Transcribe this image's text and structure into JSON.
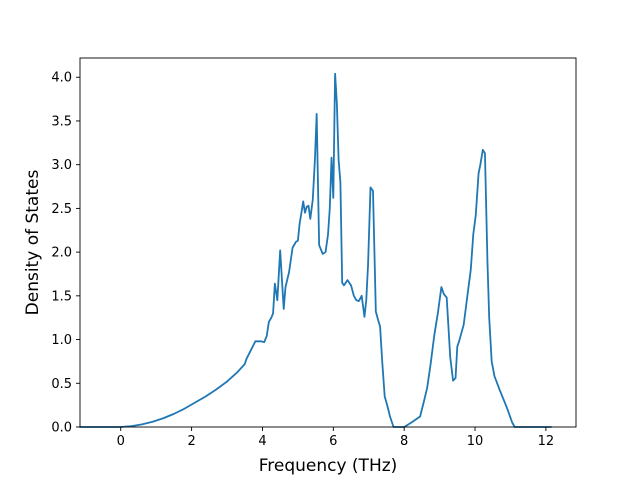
{
  "chart_data": {
    "type": "line",
    "title": "",
    "xlabel": "Frequency (THz)",
    "ylabel": "Density of States",
    "xlim": [
      -1.15,
      12.85
    ],
    "ylim": [
      0,
      4.22
    ],
    "xticks": [
      0,
      2,
      4,
      6,
      8,
      10,
      12
    ],
    "xtick_labels": [
      "0",
      "2",
      "4",
      "6",
      "8",
      "10",
      "12"
    ],
    "yticks": [
      0,
      0.5,
      1.0,
      1.5,
      2.0,
      2.5,
      3.0,
      3.5,
      4.0
    ],
    "ytick_labels": [
      "0.0",
      "0.5",
      "1.0",
      "1.5",
      "2.0",
      "2.5",
      "3.0",
      "3.5",
      "4.0"
    ],
    "grid": false,
    "legend": "none",
    "line_color": "#1f77b4",
    "series": [
      {
        "x": [
          -1.15,
          -0.5,
          0.0,
          0.3,
          0.6,
          0.9,
          1.2,
          1.5,
          1.8,
          2.1,
          2.4,
          2.7,
          3.0,
          3.3,
          3.5,
          3.55,
          3.65,
          3.8,
          3.95,
          4.05,
          4.12,
          4.18,
          4.25,
          4.3,
          4.35,
          4.42,
          4.5,
          4.6,
          4.65,
          4.75,
          4.85,
          4.95,
          5.0,
          5.05,
          5.1,
          5.15,
          5.2,
          5.25,
          5.3,
          5.35,
          5.42,
          5.48,
          5.53,
          5.6,
          5.7,
          5.78,
          5.85,
          5.9,
          5.95,
          6.0,
          6.05,
          6.1,
          6.15,
          6.2,
          6.25,
          6.3,
          6.4,
          6.5,
          6.58,
          6.65,
          6.72,
          6.8,
          6.88,
          6.93,
          6.98,
          7.05,
          7.12,
          7.2,
          7.28,
          7.32,
          7.38,
          7.45,
          7.52,
          7.6,
          7.7,
          7.78,
          7.83,
          7.9,
          8.0,
          8.2,
          8.45,
          8.55,
          8.65,
          8.75,
          8.85,
          8.95,
          9.05,
          9.12,
          9.2,
          9.3,
          9.38,
          9.45,
          9.5,
          9.55,
          9.68,
          9.8,
          9.88,
          9.95,
          10.02,
          10.1,
          10.15,
          10.22,
          10.28,
          10.35,
          10.4,
          10.47,
          10.55,
          10.7,
          10.9,
          11.05,
          11.12,
          11.2,
          11.5,
          12.15
        ],
        "y": [
          0,
          0,
          0,
          0.01,
          0.03,
          0.06,
          0.1,
          0.15,
          0.21,
          0.28,
          0.35,
          0.43,
          0.52,
          0.63,
          0.72,
          0.78,
          0.86,
          0.98,
          0.98,
          0.97,
          1.04,
          1.2,
          1.25,
          1.3,
          1.64,
          1.45,
          2.02,
          1.35,
          1.6,
          1.77,
          2.05,
          2.12,
          2.13,
          2.33,
          2.45,
          2.58,
          2.45,
          2.52,
          2.53,
          2.38,
          2.6,
          3.05,
          3.58,
          2.08,
          1.98,
          2.0,
          2.2,
          2.5,
          3.08,
          2.62,
          4.04,
          3.7,
          3.05,
          2.8,
          1.65,
          1.62,
          1.68,
          1.62,
          1.5,
          1.45,
          1.44,
          1.5,
          1.26,
          1.45,
          1.85,
          2.74,
          2.7,
          1.32,
          1.2,
          1.15,
          0.75,
          0.35,
          0.25,
          0.12,
          0,
          0,
          0,
          0,
          0,
          0.05,
          0.12,
          0.28,
          0.45,
          0.73,
          1.05,
          1.3,
          1.6,
          1.52,
          1.48,
          0.8,
          0.53,
          0.56,
          0.92,
          0.98,
          1.17,
          1.55,
          1.8,
          2.2,
          2.42,
          2.9,
          3.0,
          3.17,
          3.13,
          1.9,
          1.25,
          0.75,
          0.58,
          0.42,
          0.22,
          0.05,
          0,
          0,
          0,
          0
        ]
      }
    ]
  }
}
